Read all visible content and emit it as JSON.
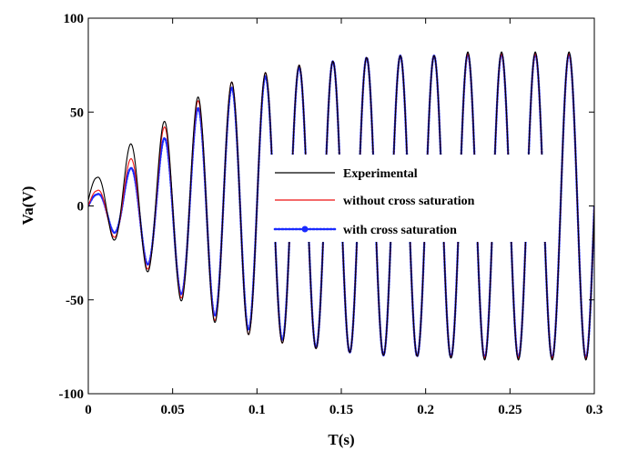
{
  "chart_data": {
    "type": "line",
    "title": "",
    "xlabel": "T(s)",
    "ylabel": "Va(V)",
    "xlim": [
      0,
      0.3
    ],
    "ylim": [
      -100,
      100
    ],
    "x_ticks": [
      0,
      0.05,
      0.1,
      0.15,
      0.2,
      0.25,
      0.3
    ],
    "x_tick_labels": [
      "0",
      "0.05",
      "0.1",
      "0.15",
      "0.2",
      "0.25",
      "0.3"
    ],
    "y_ticks": [
      -100,
      -50,
      0,
      50,
      100
    ],
    "y_tick_labels": [
      "-100",
      "-50",
      "0",
      "50",
      "100"
    ],
    "grid": false,
    "legend_position": "center-right",
    "frequency_hz": 50,
    "time_step_s": 0.0002,
    "series": [
      {
        "name": "Experimental",
        "color": "#000000",
        "style": "solid",
        "envelope": {
          "x": [
            0,
            0.005,
            0.025,
            0.045,
            0.065,
            0.085,
            0.105,
            0.125,
            0.145,
            0.165,
            0.185,
            0.205,
            0.225,
            0.245,
            0.265,
            0.285,
            0.3
          ],
          "amplitude": [
            12,
            12,
            30,
            44,
            58,
            66,
            71,
            75,
            77,
            79,
            80,
            80,
            82,
            82,
            82,
            82,
            82
          ],
          "offset": [
            3,
            3,
            3,
            1,
            0,
            0,
            0,
            0,
            0,
            0,
            0,
            0,
            0,
            0,
            0,
            0,
            0
          ]
        }
      },
      {
        "name": "without cross saturation",
        "color": "#ee1111",
        "style": "solid",
        "envelope": {
          "x": [
            0,
            0.005,
            0.025,
            0.045,
            0.065,
            0.085,
            0.105,
            0.125,
            0.145,
            0.165,
            0.185,
            0.205,
            0.225,
            0.245,
            0.265,
            0.285,
            0.3
          ],
          "amplitude": [
            8,
            8,
            25,
            42,
            56,
            66,
            71,
            75,
            77,
            79,
            80,
            80,
            81,
            81,
            81,
            81,
            81
          ],
          "offset": [
            0,
            0,
            0,
            0,
            0,
            0,
            0,
            0,
            0,
            0,
            0,
            0,
            0,
            0,
            0,
            0,
            0
          ]
        }
      },
      {
        "name": "with cross saturation",
        "color": "#1a2bff",
        "style": "dotted",
        "envelope": {
          "x": [
            0,
            0.005,
            0.025,
            0.045,
            0.065,
            0.085,
            0.105,
            0.125,
            0.145,
            0.165,
            0.185,
            0.205,
            0.225,
            0.245,
            0.265,
            0.285,
            0.3
          ],
          "amplitude": [
            6,
            6,
            21,
            38,
            53,
            63,
            69,
            74,
            77,
            79,
            80,
            80,
            81,
            81,
            81,
            81,
            81
          ],
          "offset": [
            0,
            0,
            -1,
            -2,
            -1,
            0,
            0,
            0,
            0,
            0,
            0,
            0,
            0,
            0,
            0,
            0,
            0
          ]
        }
      }
    ]
  }
}
